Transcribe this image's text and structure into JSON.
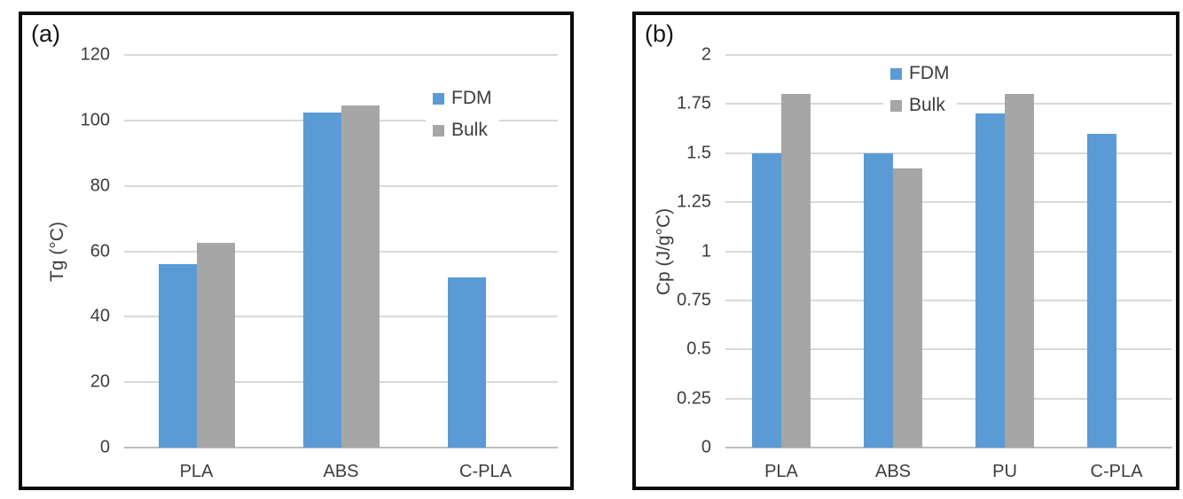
{
  "figure": {
    "background": "#ffffff",
    "panel_border_color": "#0a0a0a",
    "text_color": "#3d3d3d",
    "gridline_color": "#d9d9d9",
    "axis_line_color": "#bdbdbd"
  },
  "series_colors": {
    "FDM": "#5b9bd5",
    "Bulk": "#a6a6a6"
  },
  "chart_data": [
    {
      "type": "bar",
      "panel_label": "(a)",
      "title": "",
      "xlabel": "",
      "ylabel": "Tg (°C)",
      "categories": [
        "PLA",
        "ABS",
        "C-PLA"
      ],
      "series": [
        {
          "name": "FDM",
          "color": "#5b9bd5",
          "values": [
            56,
            102.5,
            52
          ]
        },
        {
          "name": "Bulk",
          "color": "#a6a6a6",
          "values": [
            62.5,
            104.5,
            null
          ]
        }
      ],
      "ylim": [
        0,
        120
      ],
      "yticks": [
        0,
        20,
        40,
        60,
        80,
        100,
        120
      ],
      "grid": true,
      "legend_position": "top-right"
    },
    {
      "type": "bar",
      "panel_label": "(b)",
      "title": "",
      "xlabel": "",
      "ylabel": "Cp (J/g°C)",
      "categories": [
        "PLA",
        "ABS",
        "PU",
        "C-PLA"
      ],
      "series": [
        {
          "name": "FDM",
          "color": "#5b9bd5",
          "values": [
            1.5,
            1.5,
            1.7,
            1.6
          ]
        },
        {
          "name": "Bulk",
          "color": "#a6a6a6",
          "values": [
            1.8,
            1.42,
            1.8,
            null
          ]
        }
      ],
      "ylim": [
        0,
        2
      ],
      "yticks": [
        0,
        0.25,
        0.5,
        0.75,
        1,
        1.25,
        1.5,
        1.75,
        2
      ],
      "grid": true,
      "legend_position": "top-center"
    }
  ]
}
